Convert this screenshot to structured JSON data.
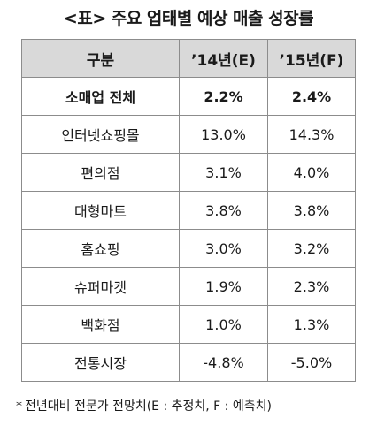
{
  "title": "<표> 주요 업태별 예상 매출 성장률",
  "table": {
    "headers": [
      "구분",
      "’14년(E)",
      "’15년(F)"
    ],
    "rows": [
      {
        "category": "소매업 전체",
        "y2014": "2.2%",
        "y2015": "2.4%"
      },
      {
        "category": "인터넷쇼핑몰",
        "y2014": "13.0%",
        "y2015": "14.3%"
      },
      {
        "category": "편의점",
        "y2014": "3.1%",
        "y2015": "4.0%"
      },
      {
        "category": "대형마트",
        "y2014": "3.8%",
        "y2015": "3.8%"
      },
      {
        "category": "홈쇼핑",
        "y2014": "3.0%",
        "y2015": "3.2%"
      },
      {
        "category": "슈퍼마켓",
        "y2014": "1.9%",
        "y2015": "2.3%"
      },
      {
        "category": "백화점",
        "y2014": "1.0%",
        "y2015": "1.3%"
      },
      {
        "category": "전통시장",
        "y2014": "-4.8%",
        "y2015": "-5.0%"
      }
    ]
  },
  "footnote": {
    "mark": "*",
    "text": "전년대비 전문가 전망치(E : 추정치, F : 예측치)"
  }
}
